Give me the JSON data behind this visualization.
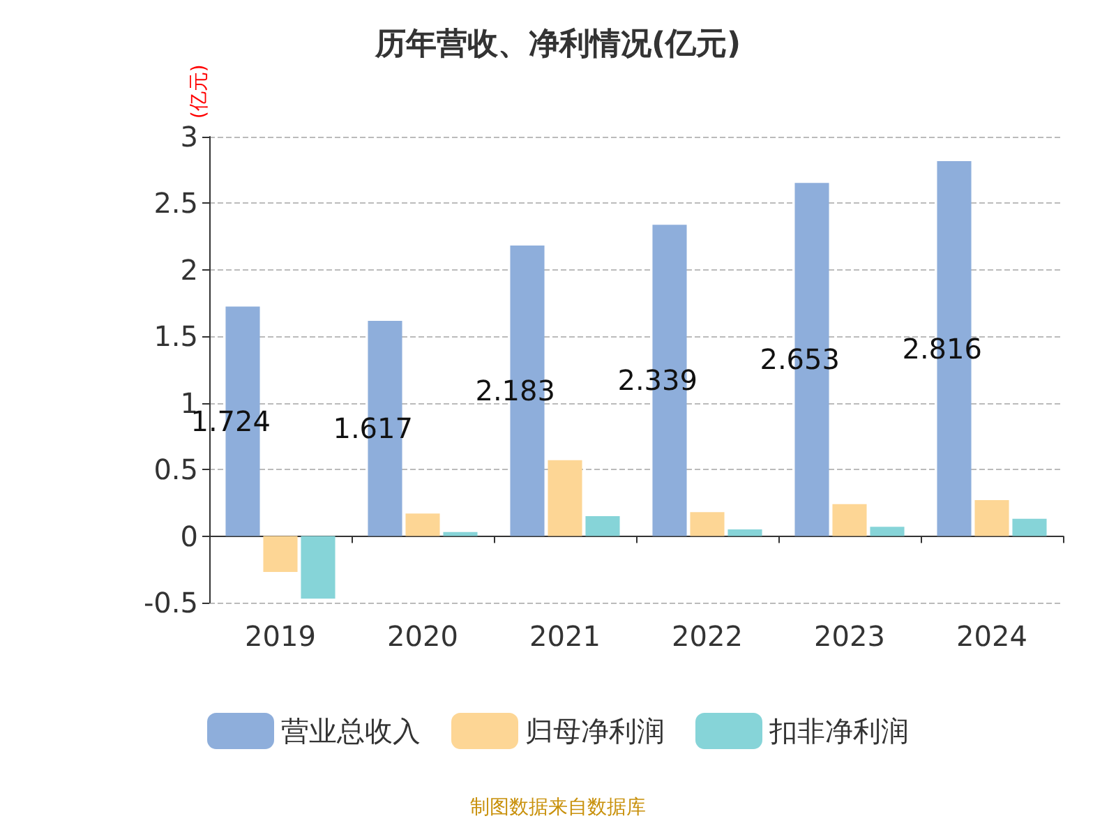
{
  "chart_data": {
    "type": "bar",
    "title": "历年营收、净利情况(亿元)",
    "ylabel": "(亿元)",
    "categories": [
      "2019",
      "2020",
      "2021",
      "2022",
      "2023",
      "2024"
    ],
    "series": [
      {
        "name": "营业总收入",
        "color": "#8eaedb",
        "values": [
          1.724,
          1.617,
          2.183,
          2.339,
          2.653,
          2.816
        ],
        "data_labels": true
      },
      {
        "name": "归母净利润",
        "color": "#fdd695",
        "values": [
          -0.27,
          0.17,
          0.57,
          0.18,
          0.24,
          0.27
        ]
      },
      {
        "name": "扣非净利润",
        "color": "#86d4d8",
        "values": [
          -0.47,
          0.03,
          0.15,
          0.05,
          0.07,
          0.13
        ]
      }
    ],
    "ylim": [
      -0.5,
      3
    ],
    "yticks": [
      -0.5,
      0,
      0.5,
      1,
      1.5,
      2,
      2.5,
      3
    ],
    "grid": "y",
    "legend": "bottom",
    "annotations": [
      "制图数据来自数据库"
    ]
  }
}
